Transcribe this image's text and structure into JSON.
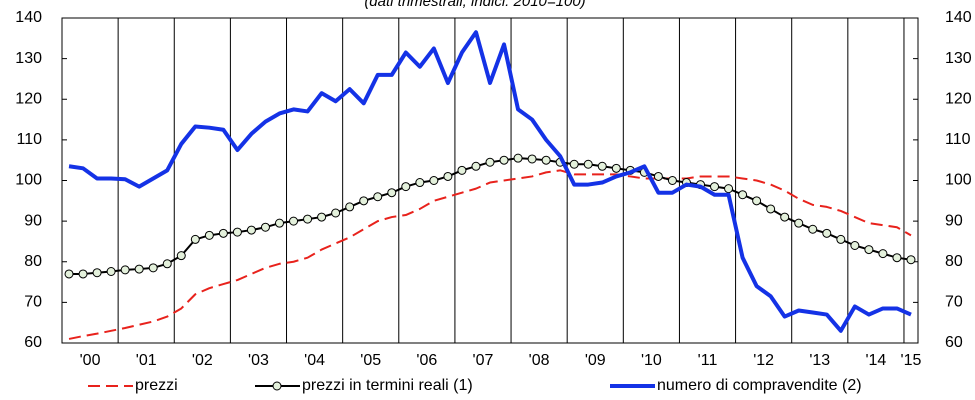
{
  "chart_data": {
    "type": "line",
    "subtitle": "(dati trimestrali; indici: 2010=100)",
    "categories": [
      null,
      "'00",
      null,
      null,
      null,
      "'01",
      null,
      null,
      null,
      "'02",
      null,
      null,
      null,
      "'03",
      null,
      null,
      null,
      "'04",
      null,
      null,
      null,
      "'05",
      null,
      null,
      null,
      "'06",
      null,
      null,
      null,
      "'07",
      null,
      null,
      null,
      "'08",
      null,
      null,
      null,
      "'09",
      null,
      null,
      null,
      "'10",
      null,
      null,
      null,
      "'11",
      null,
      null,
      null,
      "'12",
      null,
      null,
      null,
      "'13",
      null,
      null,
      null,
      "'14",
      null,
      null,
      "'15"
    ],
    "ylim": [
      60,
      140
    ],
    "yticks": [
      60,
      70,
      80,
      90,
      100,
      110,
      120,
      130,
      140
    ],
    "y2lim": [
      60,
      140
    ],
    "y2ticks": [
      60,
      70,
      80,
      90,
      100,
      110,
      120,
      130,
      140
    ],
    "series": [
      {
        "name": "prezzi",
        "color": "#e8221c",
        "dashed": true,
        "values": [
          61,
          61.7,
          62.3,
          63,
          63.7,
          64.5,
          65.3,
          66.5,
          68.5,
          72,
          73.5,
          74.5,
          75.5,
          77,
          78.5,
          79.5,
          80,
          81,
          83,
          84.5,
          86,
          88,
          90,
          91,
          91.5,
          93,
          95,
          96,
          97,
          98,
          99.5,
          100,
          100.5,
          101,
          102,
          102.5,
          101.5,
          101.5,
          101.5,
          101.5,
          101,
          100.5,
          100.5,
          100.5,
          100.5,
          101,
          101,
          101,
          100.5,
          100,
          99,
          97.5,
          95.5,
          94,
          93.5,
          92.5,
          91,
          89.5,
          89,
          88.5,
          86.5
        ]
      },
      {
        "name": "prezzi in termini reali (1)",
        "color": "#000000",
        "marker_fill": "#e4f1dc",
        "markers": true,
        "values": [
          77,
          77,
          77.3,
          77.6,
          78,
          78.2,
          78.5,
          79.5,
          81.5,
          85.5,
          86.5,
          87,
          87.3,
          87.8,
          88.5,
          89.5,
          90,
          90.5,
          91,
          92,
          93.5,
          95,
          96,
          97,
          98.5,
          99.5,
          100,
          101,
          102.5,
          103.5,
          104.5,
          105,
          105.5,
          105.3,
          105,
          104.5,
          104,
          104,
          103.5,
          103,
          102.5,
          102,
          101,
          100,
          99.5,
          99,
          98.5,
          98,
          96.5,
          95,
          93,
          91,
          89.5,
          88,
          87,
          85.5,
          84,
          83,
          82,
          81,
          80.5
        ]
      },
      {
        "name": "numero di compravendite (2)",
        "color": "#1432e6",
        "width": 4,
        "values": [
          103.5,
          103,
          100.5,
          100.5,
          100.3,
          98.5,
          100.5,
          102.5,
          109,
          113.3,
          113,
          112.5,
          107.5,
          111.5,
          114.5,
          116.5,
          117.5,
          117,
          121.5,
          119.5,
          122.5,
          119,
          126,
          126,
          131.5,
          128,
          132.5,
          124,
          131.5,
          136.5,
          124,
          133.5,
          117.5,
          115,
          110,
          106,
          99,
          99,
          99.5,
          101,
          102,
          103.5,
          97,
          97,
          99,
          98.5,
          96.5,
          96.5,
          81,
          74,
          71.5,
          66.5,
          68,
          67.5,
          67,
          63,
          69,
          67,
          68.5,
          68.5,
          67
        ]
      }
    ]
  }
}
